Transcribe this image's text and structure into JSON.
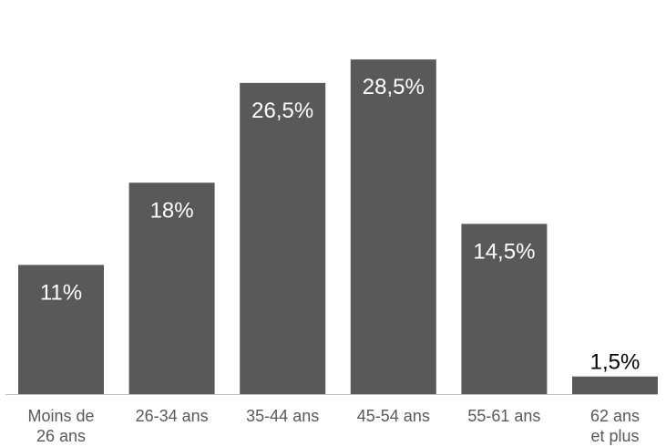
{
  "chart_data": {
    "type": "bar",
    "title": "",
    "xlabel": "",
    "ylabel": "",
    "ylim": [
      0,
      32
    ],
    "grid": false,
    "legend": "none",
    "categories": [
      [
        "Moins de",
        "26 ans"
      ],
      [
        "26-34 ans"
      ],
      [
        "35-44 ans"
      ],
      [
        "45-54 ans"
      ],
      [
        "55-61 ans"
      ],
      [
        "62 ans",
        "et plus"
      ]
    ],
    "values": [
      11,
      18,
      26.5,
      28.5,
      14.5,
      1.5
    ],
    "value_labels": [
      "11%",
      "18%",
      "26,5%",
      "28,5%",
      "14,5%",
      "1,5%"
    ],
    "bar_color": "#595959",
    "label_color_inside": "#ffffff",
    "label_color_outside": "#000000",
    "axis_color": "#bfbfbf"
  }
}
